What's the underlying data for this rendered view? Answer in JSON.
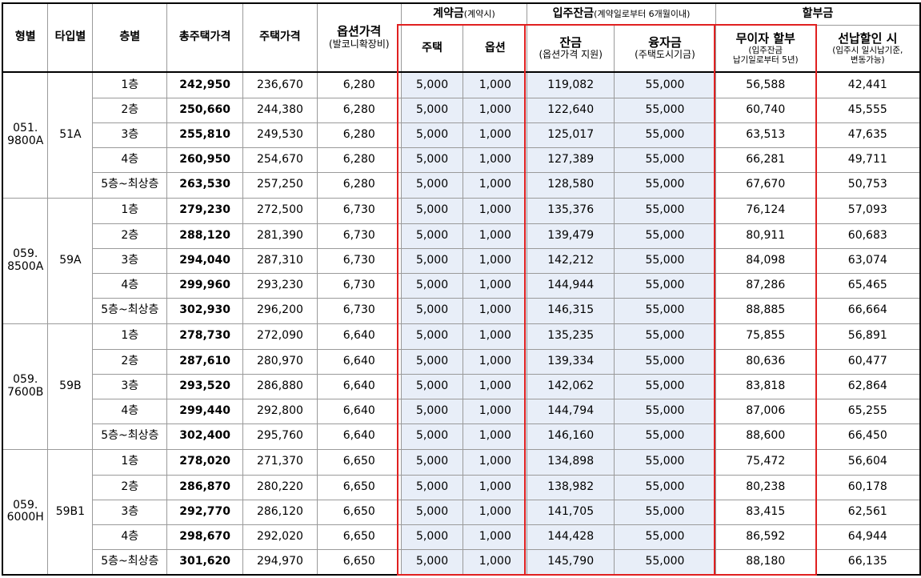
{
  "header": {
    "type": "형별",
    "subtype": "타입별",
    "floor": "층별",
    "total_price": "총주택가격",
    "house_price": "주택가격",
    "option_price": "옵션가격",
    "option_price_sub": "(발코니확장비)",
    "contract": "계약금",
    "contract_sub": "(계약시)",
    "contract_house": "주택",
    "contract_option": "옵션",
    "move_in": "입주잔금",
    "move_in_sub": "(계약일로부터 6개월이내)",
    "balance": "잔금",
    "balance_sub": "(옵션가격 지원)",
    "loan": "융자금",
    "loan_sub": "(주택도시기금)",
    "installment": "할부금",
    "interest_free": "무이자 할부",
    "interest_free_sub1": "(입주잔금",
    "interest_free_sub2": "납기일로부터 5년)",
    "prepay": "선납할인 시",
    "prepay_sub1": "(입주시 일시납기준,",
    "prepay_sub2": "변동가능)"
  },
  "groups": [
    {
      "type_line1": "051.",
      "type_line2": "9800A",
      "subtype": "51A",
      "rows": [
        {
          "floor": "1층",
          "total": "242,950",
          "house": "236,670",
          "option": "6,280",
          "c_house": "5,000",
          "c_option": "1,000",
          "balance": "119,082",
          "loan": "55,000",
          "free": "56,588",
          "prepay": "42,441"
        },
        {
          "floor": "2층",
          "total": "250,660",
          "house": "244,380",
          "option": "6,280",
          "c_house": "5,000",
          "c_option": "1,000",
          "balance": "122,640",
          "loan": "55,000",
          "free": "60,740",
          "prepay": "45,555"
        },
        {
          "floor": "3층",
          "total": "255,810",
          "house": "249,530",
          "option": "6,280",
          "c_house": "5,000",
          "c_option": "1,000",
          "balance": "125,017",
          "loan": "55,000",
          "free": "63,513",
          "prepay": "47,635"
        },
        {
          "floor": "4층",
          "total": "260,950",
          "house": "254,670",
          "option": "6,280",
          "c_house": "5,000",
          "c_option": "1,000",
          "balance": "127,389",
          "loan": "55,000",
          "free": "66,281",
          "prepay": "49,711"
        },
        {
          "floor": "5층~최상층",
          "total": "263,530",
          "house": "257,250",
          "option": "6,280",
          "c_house": "5,000",
          "c_option": "1,000",
          "balance": "128,580",
          "loan": "55,000",
          "free": "67,670",
          "prepay": "50,753"
        }
      ]
    },
    {
      "type_line1": "059.",
      "type_line2": "8500A",
      "subtype": "59A",
      "rows": [
        {
          "floor": "1층",
          "total": "279,230",
          "house": "272,500",
          "option": "6,730",
          "c_house": "5,000",
          "c_option": "1,000",
          "balance": "135,376",
          "loan": "55,000",
          "free": "76,124",
          "prepay": "57,093"
        },
        {
          "floor": "2층",
          "total": "288,120",
          "house": "281,390",
          "option": "6,730",
          "c_house": "5,000",
          "c_option": "1,000",
          "balance": "139,479",
          "loan": "55,000",
          "free": "80,911",
          "prepay": "60,683"
        },
        {
          "floor": "3층",
          "total": "294,040",
          "house": "287,310",
          "option": "6,730",
          "c_house": "5,000",
          "c_option": "1,000",
          "balance": "142,212",
          "loan": "55,000",
          "free": "84,098",
          "prepay": "63,074"
        },
        {
          "floor": "4층",
          "total": "299,960",
          "house": "293,230",
          "option": "6,730",
          "c_house": "5,000",
          "c_option": "1,000",
          "balance": "144,944",
          "loan": "55,000",
          "free": "87,286",
          "prepay": "65,465"
        },
        {
          "floor": "5층~최상층",
          "total": "302,930",
          "house": "296,200",
          "option": "6,730",
          "c_house": "5,000",
          "c_option": "1,000",
          "balance": "146,315",
          "loan": "55,000",
          "free": "88,885",
          "prepay": "66,664"
        }
      ]
    },
    {
      "type_line1": "059.",
      "type_line2": "7600B",
      "subtype": "59B",
      "rows": [
        {
          "floor": "1층",
          "total": "278,730",
          "house": "272,090",
          "option": "6,640",
          "c_house": "5,000",
          "c_option": "1,000",
          "balance": "135,235",
          "loan": "55,000",
          "free": "75,855",
          "prepay": "56,891"
        },
        {
          "floor": "2층",
          "total": "287,610",
          "house": "280,970",
          "option": "6,640",
          "c_house": "5,000",
          "c_option": "1,000",
          "balance": "139,334",
          "loan": "55,000",
          "free": "80,636",
          "prepay": "60,477"
        },
        {
          "floor": "3층",
          "total": "293,520",
          "house": "286,880",
          "option": "6,640",
          "c_house": "5,000",
          "c_option": "1,000",
          "balance": "142,062",
          "loan": "55,000",
          "free": "83,818",
          "prepay": "62,864"
        },
        {
          "floor": "4층",
          "total": "299,440",
          "house": "292,800",
          "option": "6,640",
          "c_house": "5,000",
          "c_option": "1,000",
          "balance": "144,794",
          "loan": "55,000",
          "free": "87,006",
          "prepay": "65,255"
        },
        {
          "floor": "5층~최상층",
          "total": "302,400",
          "house": "295,760",
          "option": "6,640",
          "c_house": "5,000",
          "c_option": "1,000",
          "balance": "146,160",
          "loan": "55,000",
          "free": "88,600",
          "prepay": "66,450"
        }
      ]
    },
    {
      "type_line1": "059.",
      "type_line2": "6000H",
      "subtype": "59B1",
      "rows": [
        {
          "floor": "1층",
          "total": "278,020",
          "house": "271,370",
          "option": "6,650",
          "c_house": "5,000",
          "c_option": "1,000",
          "balance": "134,898",
          "loan": "55,000",
          "free": "75,472",
          "prepay": "56,604"
        },
        {
          "floor": "2층",
          "total": "286,870",
          "house": "280,220",
          "option": "6,650",
          "c_house": "5,000",
          "c_option": "1,000",
          "balance": "138,982",
          "loan": "55,000",
          "free": "80,238",
          "prepay": "60,178"
        },
        {
          "floor": "3층",
          "total": "292,770",
          "house": "286,120",
          "option": "6,650",
          "c_house": "5,000",
          "c_option": "1,000",
          "balance": "141,705",
          "loan": "55,000",
          "free": "83,415",
          "prepay": "62,561"
        },
        {
          "floor": "4층",
          "total": "298,670",
          "house": "292,020",
          "option": "6,650",
          "c_house": "5,000",
          "c_option": "1,000",
          "balance": "144,428",
          "loan": "55,000",
          "free": "86,592",
          "prepay": "64,944"
        },
        {
          "floor": "5층~최상층",
          "total": "301,620",
          "house": "294,970",
          "option": "6,650",
          "c_house": "5,000",
          "c_option": "1,000",
          "balance": "145,790",
          "loan": "55,000",
          "free": "88,180",
          "prepay": "66,135"
        }
      ]
    }
  ],
  "colors": {
    "highlight_bg": "#e8eef8",
    "frame": "#e02020"
  }
}
